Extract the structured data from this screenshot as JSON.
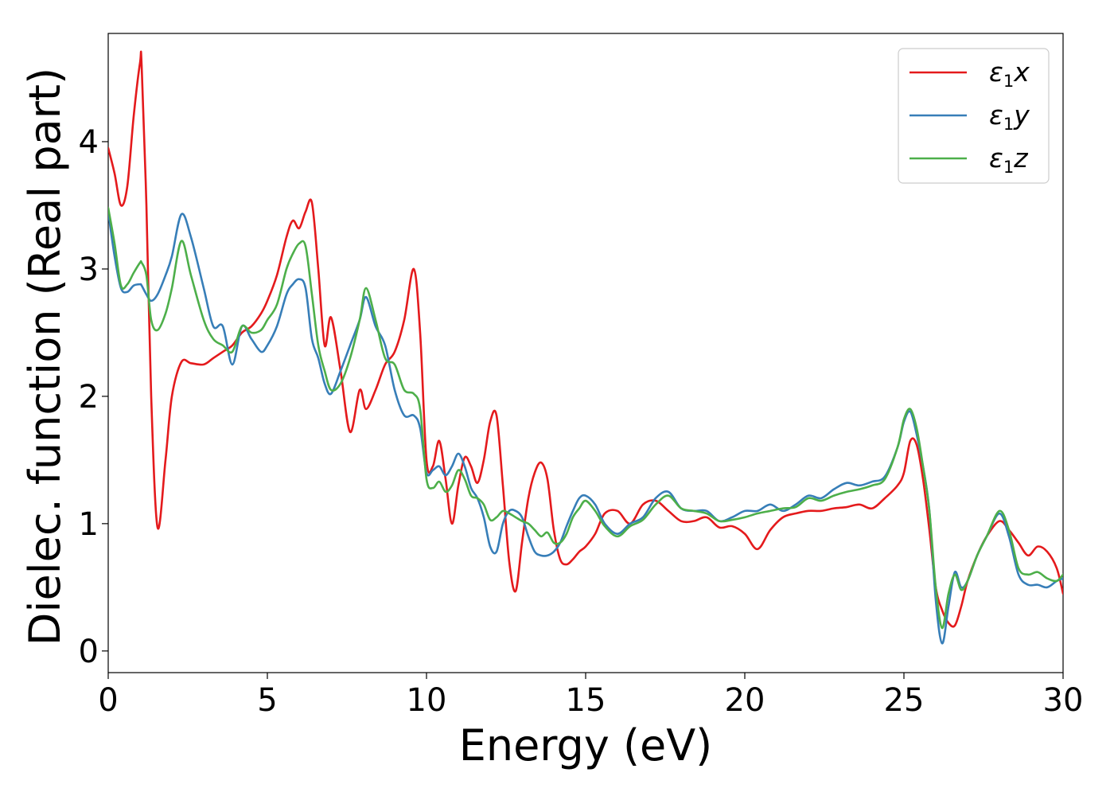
{
  "chart_data": {
    "type": "line",
    "xlabel": "Energy (eV)",
    "ylabel": "Dielec. function (Real part)",
    "xlim": [
      0,
      30
    ],
    "ylim": [
      -0.17,
      4.85
    ],
    "xticks": [
      0,
      5,
      10,
      15,
      20,
      25,
      30
    ],
    "yticks": [
      0,
      1,
      2,
      3,
      4
    ],
    "grid": false,
    "legend_position": "top-right",
    "x": [
      0,
      0.2,
      0.4,
      0.6,
      0.8,
      1.0,
      1.05,
      1.2,
      1.35,
      1.55,
      1.8,
      2.0,
      2.3,
      2.6,
      3.0,
      3.3,
      3.6,
      3.9,
      4.2,
      4.5,
      4.8,
      5.0,
      5.3,
      5.6,
      5.8,
      6.0,
      6.2,
      6.4,
      6.6,
      6.8,
      7.0,
      7.3,
      7.6,
      7.9,
      8.1,
      8.4,
      8.7,
      9.0,
      9.3,
      9.6,
      9.8,
      10.0,
      10.2,
      10.4,
      10.6,
      10.8,
      11.0,
      11.2,
      11.4,
      11.6,
      11.8,
      12.0,
      12.2,
      12.4,
      12.6,
      12.8,
      13.0,
      13.2,
      13.4,
      13.6,
      13.8,
      14.0,
      14.2,
      14.4,
      14.6,
      14.8,
      15.0,
      15.3,
      15.6,
      16.0,
      16.4,
      16.8,
      17.2,
      17.6,
      18.0,
      18.4,
      18.8,
      19.2,
      19.6,
      20.0,
      20.4,
      20.8,
      21.2,
      21.6,
      22.0,
      22.4,
      22.8,
      23.2,
      23.6,
      24.0,
      24.4,
      24.8,
      25.0,
      25.2,
      25.4,
      25.6,
      25.8,
      26.0,
      26.2,
      26.4,
      26.6,
      26.8,
      27.0,
      27.3,
      27.6,
      28.0,
      28.3,
      28.6,
      28.9,
      29.2,
      29.5,
      29.8,
      30.0
    ],
    "series": [
      {
        "name": "ε₁x",
        "name_base": "ε",
        "name_sub": "1",
        "name_var": "x",
        "color": "#e41a1c",
        "values": [
          3.95,
          3.75,
          3.5,
          3.65,
          4.2,
          4.62,
          4.6,
          3.5,
          2.0,
          0.97,
          1.5,
          2.0,
          2.27,
          2.26,
          2.25,
          2.3,
          2.35,
          2.4,
          2.5,
          2.55,
          2.65,
          2.75,
          2.95,
          3.25,
          3.38,
          3.32,
          3.45,
          3.52,
          3.0,
          2.4,
          2.62,
          2.2,
          1.72,
          2.05,
          1.9,
          2.05,
          2.25,
          2.35,
          2.6,
          3.0,
          2.5,
          1.5,
          1.45,
          1.65,
          1.35,
          1.0,
          1.3,
          1.52,
          1.45,
          1.32,
          1.5,
          1.8,
          1.85,
          1.3,
          0.7,
          0.47,
          0.85,
          1.2,
          1.4,
          1.48,
          1.35,
          0.95,
          0.72,
          0.68,
          0.72,
          0.78,
          0.82,
          0.92,
          1.08,
          1.1,
          1.0,
          1.15,
          1.18,
          1.1,
          1.02,
          1.02,
          1.05,
          0.97,
          0.98,
          0.92,
          0.8,
          0.95,
          1.05,
          1.08,
          1.1,
          1.1,
          1.12,
          1.13,
          1.15,
          1.12,
          1.2,
          1.3,
          1.4,
          1.65,
          1.62,
          1.35,
          0.95,
          0.5,
          0.32,
          0.22,
          0.2,
          0.35,
          0.55,
          0.75,
          0.9,
          1.02,
          0.95,
          0.85,
          0.75,
          0.82,
          0.78,
          0.65,
          0.45
        ]
      },
      {
        "name": "ε₁y",
        "name_base": "ε",
        "name_sub": "1",
        "name_var": "y",
        "color": "#377eb8",
        "values": [
          3.45,
          3.1,
          2.85,
          2.82,
          2.87,
          2.88,
          2.87,
          2.8,
          2.75,
          2.8,
          2.95,
          3.1,
          3.43,
          3.25,
          2.85,
          2.55,
          2.55,
          2.25,
          2.55,
          2.45,
          2.35,
          2.4,
          2.55,
          2.8,
          2.88,
          2.92,
          2.85,
          2.45,
          2.3,
          2.1,
          2.02,
          2.2,
          2.4,
          2.6,
          2.78,
          2.55,
          2.4,
          2.05,
          1.85,
          1.85,
          1.75,
          1.4,
          1.42,
          1.45,
          1.38,
          1.45,
          1.55,
          1.45,
          1.28,
          1.2,
          1.05,
          0.82,
          0.78,
          1.0,
          1.1,
          1.1,
          1.05,
          0.9,
          0.78,
          0.75,
          0.75,
          0.78,
          0.85,
          0.98,
          1.1,
          1.2,
          1.22,
          1.15,
          1.0,
          0.92,
          1.0,
          1.05,
          1.2,
          1.25,
          1.12,
          1.1,
          1.1,
          1.02,
          1.05,
          1.1,
          1.1,
          1.15,
          1.1,
          1.15,
          1.22,
          1.2,
          1.27,
          1.32,
          1.3,
          1.33,
          1.37,
          1.6,
          1.8,
          1.88,
          1.7,
          1.45,
          1.1,
          0.4,
          0.06,
          0.35,
          0.62,
          0.5,
          0.55,
          0.75,
          0.9,
          1.08,
          0.9,
          0.6,
          0.52,
          0.52,
          0.5,
          0.55,
          0.57
        ]
      },
      {
        "name": "ε₁z",
        "name_base": "ε",
        "name_sub": "1",
        "name_var": "z",
        "color": "#4daf4a",
        "values": [
          3.48,
          3.2,
          2.87,
          2.88,
          2.97,
          3.05,
          3.05,
          2.95,
          2.6,
          2.52,
          2.65,
          2.85,
          3.22,
          2.95,
          2.6,
          2.45,
          2.4,
          2.35,
          2.55,
          2.5,
          2.52,
          2.6,
          2.72,
          3.0,
          3.12,
          3.2,
          3.18,
          2.8,
          2.4,
          2.2,
          2.05,
          2.1,
          2.3,
          2.6,
          2.85,
          2.6,
          2.3,
          2.25,
          2.05,
          2.02,
          1.9,
          1.35,
          1.28,
          1.33,
          1.25,
          1.3,
          1.42,
          1.35,
          1.22,
          1.2,
          1.15,
          1.03,
          1.05,
          1.1,
          1.08,
          1.05,
          1.02,
          1.0,
          0.95,
          0.9,
          0.93,
          0.85,
          0.85,
          0.92,
          1.05,
          1.12,
          1.18,
          1.1,
          0.98,
          0.9,
          0.98,
          1.03,
          1.15,
          1.22,
          1.12,
          1.1,
          1.08,
          1.02,
          1.03,
          1.05,
          1.08,
          1.1,
          1.12,
          1.13,
          1.2,
          1.18,
          1.22,
          1.25,
          1.27,
          1.3,
          1.35,
          1.6,
          1.82,
          1.9,
          1.75,
          1.45,
          1.1,
          0.5,
          0.18,
          0.45,
          0.6,
          0.48,
          0.55,
          0.75,
          0.9,
          1.1,
          0.95,
          0.65,
          0.6,
          0.62,
          0.57,
          0.55,
          0.6
        ]
      }
    ]
  }
}
